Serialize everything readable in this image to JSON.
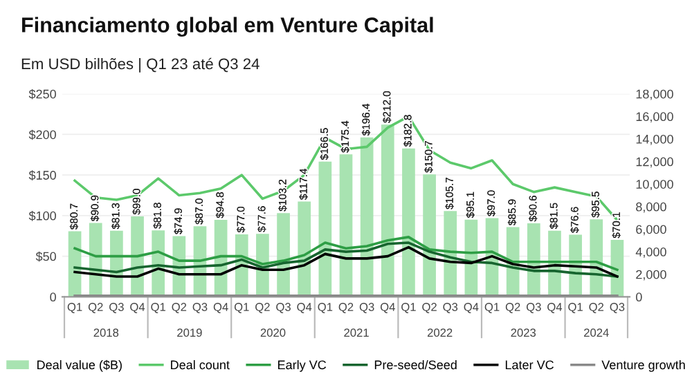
{
  "chart_data": {
    "type": "bar",
    "title": "Financiamento global em Venture Capital",
    "subtitle": "Em USD bilhões | Q1 23 até Q3 24",
    "categories": [
      "Q1",
      "Q2",
      "Q3",
      "Q4",
      "Q1",
      "Q2",
      "Q3",
      "Q4",
      "Q1",
      "Q2",
      "Q3",
      "Q4",
      "Q1",
      "Q2",
      "Q3",
      "Q4",
      "Q1",
      "Q2",
      "Q3",
      "Q4",
      "Q1",
      "Q2",
      "Q3",
      "Q4",
      "Q1",
      "Q2",
      "Q3"
    ],
    "annotations": [
      "2018",
      "2019",
      "2020",
      "2021",
      "2022",
      "2023",
      "2024"
    ],
    "series": [
      {
        "name": "Deal value ($B)",
        "color": "#a8e3b1",
        "values": [
          80.7,
          90.9,
          81.3,
          99.0,
          81.8,
          74.9,
          87.0,
          94.8,
          77.0,
          77.6,
          103.2,
          117.4,
          166.5,
          175.4,
          196.4,
          212.0,
          182.8,
          150.7,
          105.7,
          95.1,
          97.0,
          85.9,
          90.6,
          81.5,
          76.6,
          95.5,
          70.1
        ],
        "value_labels": [
          "$80.7",
          "$90.9",
          "$81.3",
          "$99.0",
          "$81.8",
          "$74.9",
          "$87.0",
          "$94.8",
          "$77.0",
          "$77.6",
          "$103.2",
          "$117.4",
          "$166.5",
          "$175.4",
          "$196.4",
          "$212.0",
          "$182.8",
          "$150.7",
          "$105.7",
          "$95.1",
          "$97.0",
          "$85.9",
          "$90.6",
          "$81.5",
          "$76.6",
          "$95.5",
          "$70.1"
        ]
      },
      {
        "name": "Deal count",
        "type": "line",
        "axis": "y2",
        "color": "#5cc96b",
        "values": [
          10300,
          8800,
          8600,
          9000,
          10500,
          9000,
          9200,
          9600,
          10800,
          8700,
          9400,
          10800,
          14100,
          13100,
          13300,
          15000,
          16000,
          13000,
          11900,
          11400,
          12100,
          10000,
          9300,
          9700,
          9300,
          8900,
          6800
        ]
      },
      {
        "name": "Early VC",
        "type": "line",
        "axis": "y2",
        "color": "#2e9e45",
        "values": [
          4300,
          3600,
          3600,
          3600,
          4000,
          3200,
          3200,
          3600,
          3600,
          2900,
          3200,
          3700,
          4800,
          4300,
          4500,
          5000,
          5300,
          4200,
          4000,
          3900,
          4000,
          3100,
          3100,
          3100,
          3100,
          3100,
          2400
        ]
      },
      {
        "name": "Pre-seed/Seed",
        "type": "line",
        "axis": "y2",
        "color": "#17652f",
        "values": [
          2600,
          2400,
          2200,
          2600,
          2800,
          2600,
          2700,
          2800,
          3300,
          2600,
          3000,
          3200,
          4200,
          4000,
          4100,
          4700,
          4800,
          4000,
          3500,
          3100,
          3000,
          2600,
          2300,
          2300,
          2100,
          2000,
          1800
        ]
      },
      {
        "name": "Later VC",
        "type": "line",
        "axis": "y2",
        "color": "#000000",
        "values": [
          2200,
          2000,
          1800,
          1800,
          2500,
          2000,
          2000,
          2000,
          2800,
          2400,
          2400,
          2800,
          3800,
          3400,
          3400,
          3600,
          4400,
          3400,
          3100,
          3000,
          3600,
          2900,
          2600,
          2800,
          2700,
          2600,
          1800
        ]
      },
      {
        "name": "Venture growth",
        "type": "line",
        "axis": "y2",
        "color": "#8a8a8a",
        "values": [
          100,
          100,
          100,
          100,
          100,
          100,
          100,
          100,
          100,
          100,
          100,
          100,
          100,
          100,
          100,
          100,
          100,
          100,
          100,
          100,
          100,
          100,
          100,
          100,
          100,
          100,
          100
        ]
      }
    ],
    "ylim": [
      0,
      250
    ],
    "yticks": [
      {
        "value": 0,
        "label": "0"
      },
      {
        "value": 50,
        "label": "$50"
      },
      {
        "value": 100,
        "label": "$100"
      },
      {
        "value": 150,
        "label": "$150"
      },
      {
        "value": 200,
        "label": "$200"
      },
      {
        "value": 250,
        "label": "$250"
      }
    ],
    "y2lim": [
      0,
      18000
    ],
    "y2ticks": [
      {
        "value": 0,
        "label": "0"
      },
      {
        "value": 2000,
        "label": "2,000"
      },
      {
        "value": 4000,
        "label": "4,000"
      },
      {
        "value": 6000,
        "label": "6,000"
      },
      {
        "value": 8000,
        "label": "8,000"
      },
      {
        "value": 10000,
        "label": "10,000"
      },
      {
        "value": 12000,
        "label": "12,000"
      },
      {
        "value": 14000,
        "label": "14,000"
      },
      {
        "value": 16000,
        "label": "16,000"
      },
      {
        "value": 18000,
        "label": "18,000"
      }
    ],
    "grid": "y",
    "legend": "bottom",
    "marker": "none",
    "line_style": "solid"
  }
}
